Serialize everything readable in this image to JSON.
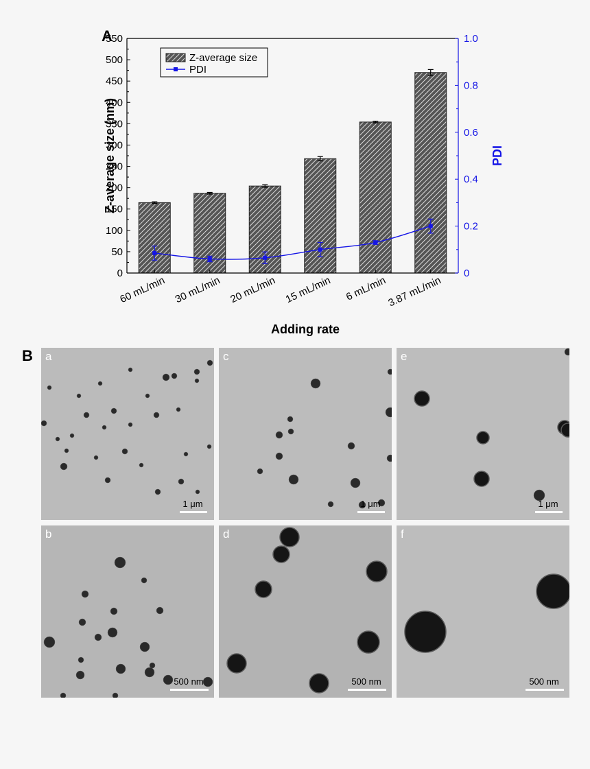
{
  "panel_a_letter": "A",
  "panel_b_letter": "B",
  "chart_data": {
    "type": "bar",
    "title": "",
    "xlabel": "Adding rate",
    "ylabel": "Z-average size (nm)",
    "y2label": "PDI",
    "categories": [
      "60 mL/min",
      "30 mL/min",
      "20 mL/min",
      "15 mL/min",
      "6 mL/min",
      "3.87 mL/min"
    ],
    "ylim": [
      0,
      550
    ],
    "yticks": [
      0,
      50,
      100,
      150,
      200,
      250,
      300,
      350,
      400,
      450,
      500,
      550
    ],
    "y2lim": [
      0,
      1.0
    ],
    "y2ticks": [
      "0",
      "0.2",
      "0.4",
      "0.6",
      "0.8",
      "1.0"
    ],
    "y2tickvalues": [
      0,
      0.2,
      0.4,
      0.6,
      0.8,
      1.0
    ],
    "series": [
      {
        "name": "Z-average size",
        "kind": "bar",
        "axis": "left",
        "values": [
          165,
          187,
          204,
          268,
          354,
          470
        ],
        "errors": [
          2,
          2,
          3,
          5,
          2,
          7
        ]
      },
      {
        "name": "PDI",
        "kind": "line",
        "axis": "right",
        "values": [
          0.085,
          0.06,
          0.065,
          0.1,
          0.13,
          0.2
        ],
        "errors": [
          0.03,
          0.012,
          0.025,
          0.03,
          0.008,
          0.03
        ]
      }
    ],
    "legend_position": "top-left",
    "colors": {
      "bars": "#555555",
      "bar_hatch": "#ffffff",
      "pdi": "#1515e6",
      "axes": "#000000",
      "right_axis": "#1515e6"
    }
  },
  "tem_panels": [
    {
      "label": "a",
      "scale": "1 μm"
    },
    {
      "label": "c",
      "scale": "1 μm"
    },
    {
      "label": "e",
      "scale": "1 μm"
    },
    {
      "label": "b",
      "scale": "500 nm"
    },
    {
      "label": "d",
      "scale": "500 nm"
    },
    {
      "label": "f",
      "scale": "500 nm"
    }
  ]
}
